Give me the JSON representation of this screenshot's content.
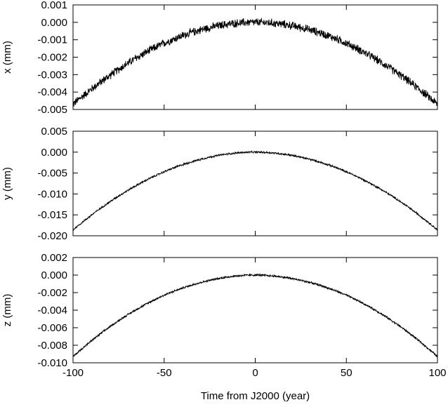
{
  "chart_data": [
    {
      "type": "line",
      "ylabel": "x  (mm)",
      "xlim": [
        -100,
        100
      ],
      "ylim": [
        -0.005,
        0.001
      ],
      "x_ticks": [
        -100,
        -50,
        0,
        50,
        100
      ],
      "y_ticks": [
        "0.001",
        "0.000",
        "-0.001",
        "-0.002",
        "-0.003",
        "-0.004",
        "-0.005"
      ],
      "series": [
        {
          "x": [
            -100,
            -75,
            -50,
            -25,
            0,
            25,
            50,
            75,
            100
          ],
          "y": [
            -0.0047,
            -0.0027,
            -0.0012,
            -0.0003,
            0.0,
            -0.0003,
            -0.0012,
            -0.0027,
            -0.0047
          ],
          "noise": 0.0002
        }
      ]
    },
    {
      "type": "line",
      "ylabel": "y  (mm)",
      "xlim": [
        -100,
        100
      ],
      "ylim": [
        -0.02,
        0.005
      ],
      "x_ticks": [
        -100,
        -50,
        0,
        50,
        100
      ],
      "y_ticks": [
        "0.005",
        "0.000",
        "-0.005",
        "-0.010",
        "-0.015",
        "-0.020"
      ],
      "series": [
        {
          "x": [
            -100,
            -75,
            -50,
            -25,
            0,
            25,
            50,
            75,
            100
          ],
          "y": [
            -0.0186,
            -0.0105,
            -0.0047,
            -0.0012,
            0.0,
            -0.0012,
            -0.0047,
            -0.0105,
            -0.0186
          ],
          "noise": 0.0002
        }
      ]
    },
    {
      "type": "line",
      "ylabel": "z  (mm)",
      "xlabel": "Time  from  J2000  (year)",
      "xlim": [
        -100,
        100
      ],
      "ylim": [
        -0.01,
        0.002
      ],
      "x_ticks": [
        "-100",
        "-50",
        "0",
        "50",
        "100"
      ],
      "y_ticks": [
        "0.002",
        "0.000",
        "-0.002",
        "-0.004",
        "-0.006",
        "-0.008",
        "-0.010"
      ],
      "series": [
        {
          "x": [
            -100,
            -75,
            -50,
            -25,
            0,
            25,
            50,
            75,
            100
          ],
          "y": [
            -0.0093,
            -0.0052,
            -0.0023,
            -0.0006,
            0.0,
            -0.0006,
            -0.0023,
            -0.0052,
            -0.0093
          ],
          "noise": 0.0001
        }
      ]
    }
  ]
}
